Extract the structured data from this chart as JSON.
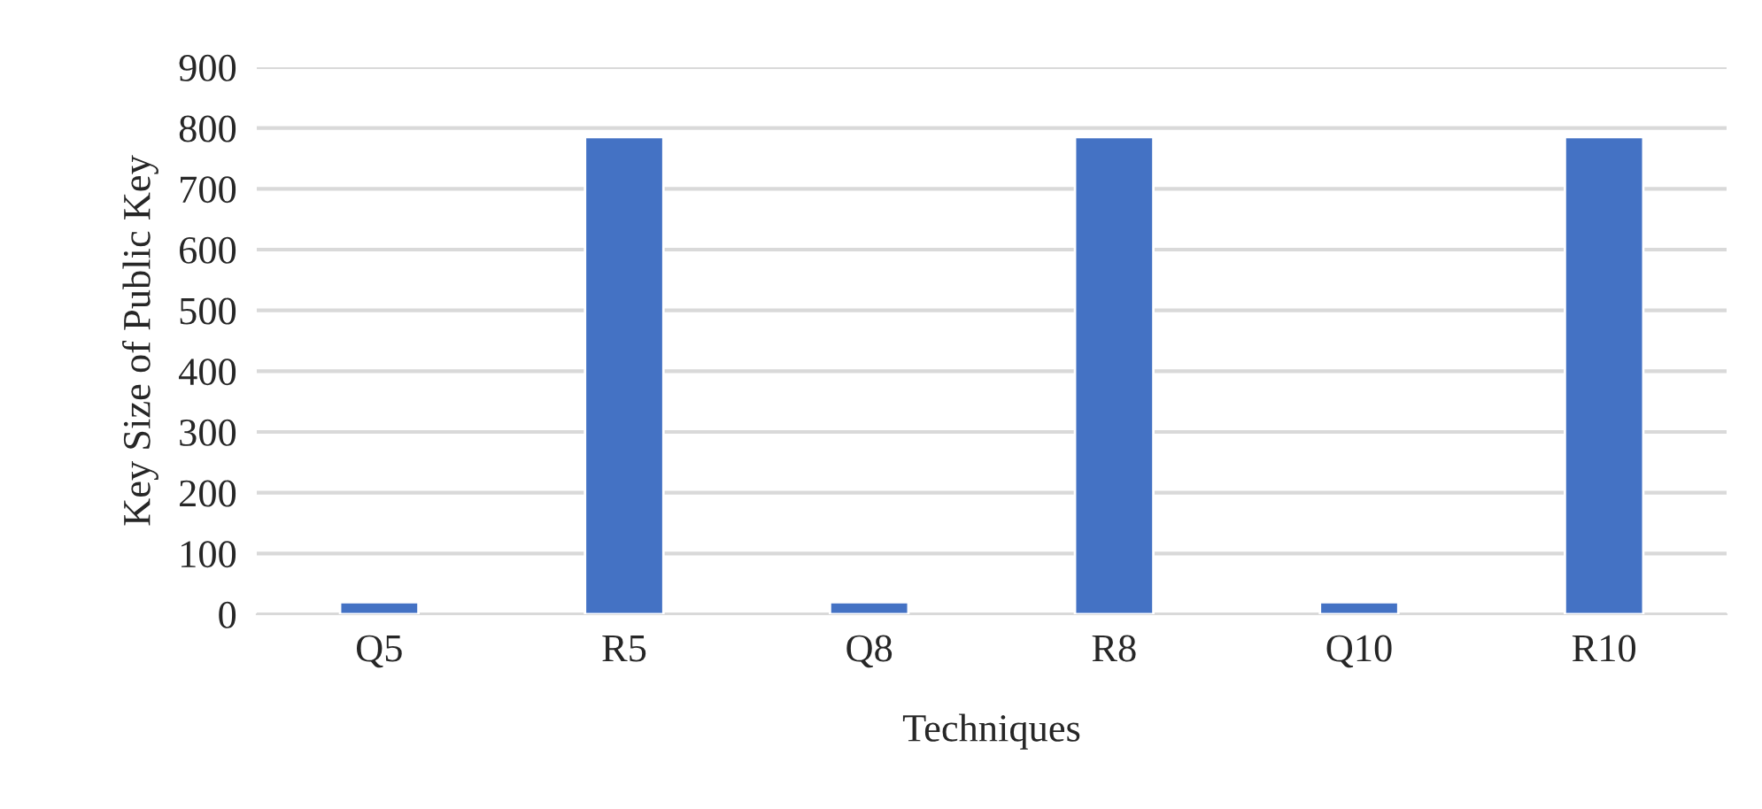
{
  "chart_data": {
    "type": "bar",
    "xlabel": "Techniques",
    "ylabel": "Key Size of Public Key",
    "categories": [
      "Q5",
      "R5",
      "Q8",
      "R8",
      "Q10",
      "R10"
    ],
    "values": [
      20,
      785,
      20,
      785,
      20,
      785
    ],
    "color": "#4472c4",
    "ylim": [
      0,
      900
    ],
    "yticks": [
      0,
      100,
      200,
      300,
      400,
      500,
      600,
      700,
      800,
      900
    ],
    "grid": "y",
    "legend": false
  }
}
